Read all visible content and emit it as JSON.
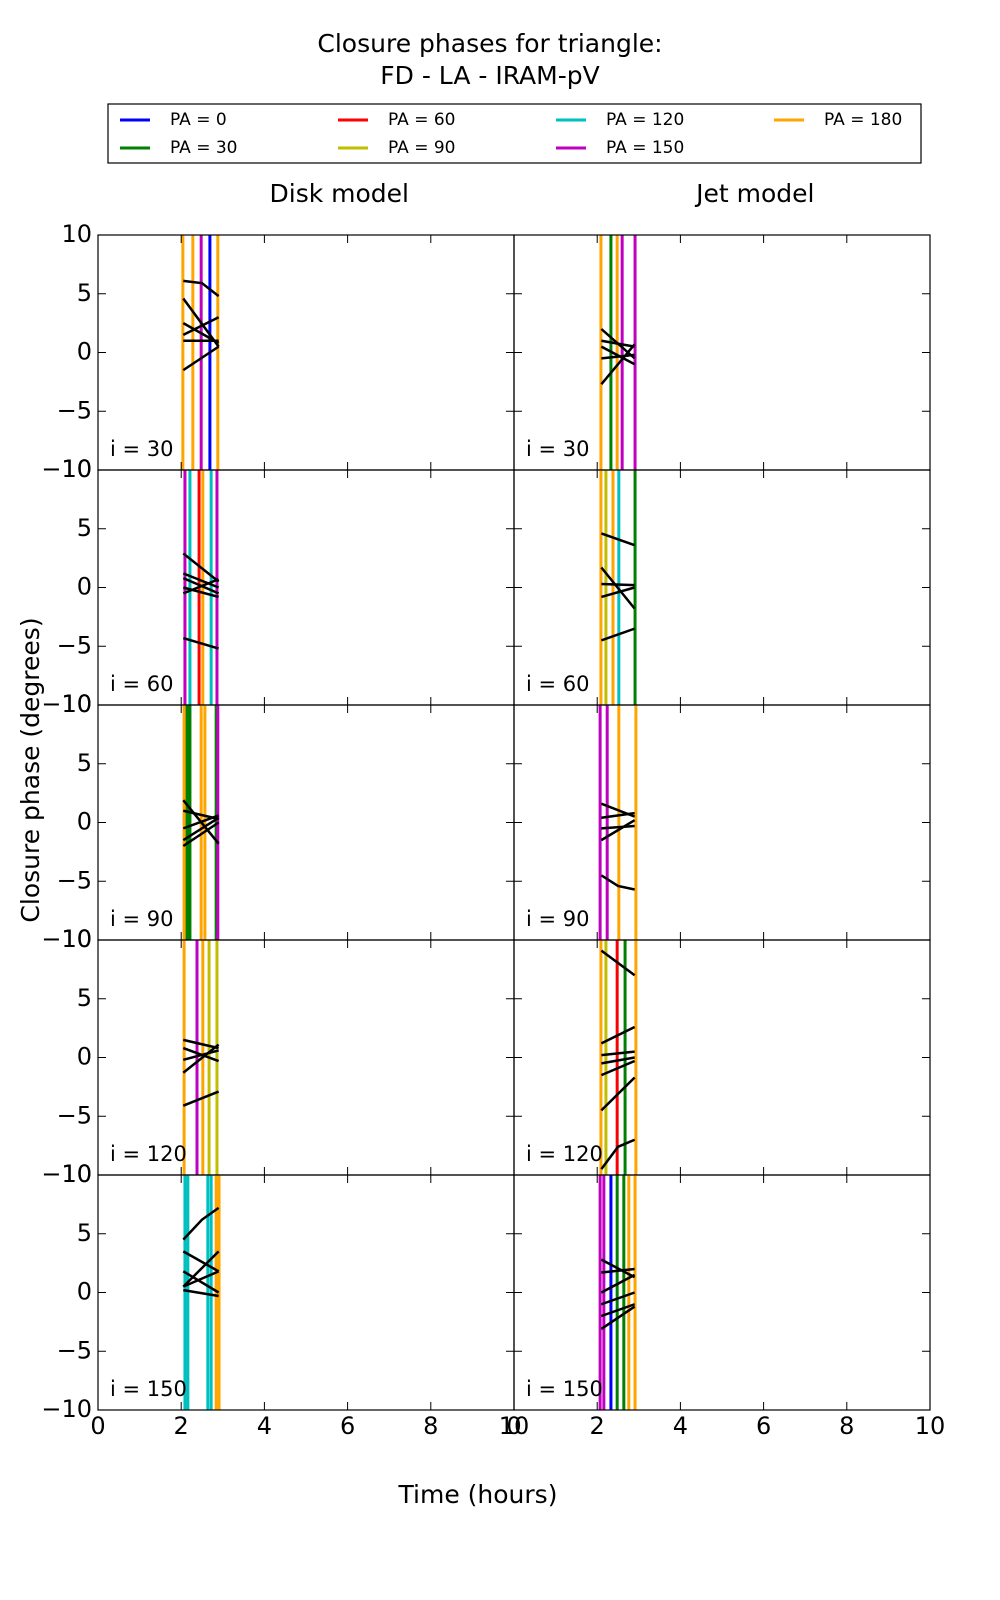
{
  "chart_data": {
    "type": "line",
    "title": [
      "Closure phases for triangle:",
      "FD - LA - IRAM-pV"
    ],
    "xlabel": "Time (hours)",
    "ylabel": "Closure phase (degrees)",
    "xlim": [
      0,
      10
    ],
    "xticks": [
      0,
      2,
      4,
      6,
      8,
      10
    ],
    "ylim": [
      -10,
      10
    ],
    "yticks": [
      {
        "value": -10,
        "label": "−10"
      },
      {
        "value": -5,
        "label": "−5"
      },
      0,
      5,
      10
    ],
    "curve_color": "#000000",
    "series": [
      {
        "name": "PA = 0",
        "color": "#0000ff"
      },
      {
        "name": "PA = 30",
        "color": "#008000"
      },
      {
        "name": "PA = 60",
        "color": "#ff0000"
      },
      {
        "name": "PA = 90",
        "color": "#bfbf00"
      },
      {
        "name": "PA = 120",
        "color": "#00bfbf"
      },
      {
        "name": "PA = 150",
        "color": "#bf00bf"
      },
      {
        "name": "PA = 180",
        "color": "#ffa500"
      }
    ],
    "columns": [
      {
        "title": "Disk model",
        "panels": [
          {
            "label": "i = 30",
            "vlines": [
              [
                2.69
              ],
              [],
              [],
              [],
              [],
              [
                2.48
              ],
              [
                2.04,
                2.28,
                2.88
              ]
            ],
            "curves": [
              {
                "x": [
                  2.05,
                  2.5,
                  2.9
                ],
                "values": [
                  6.1,
                  5.9,
                  4.8
                ]
              },
              {
                "x": [
                  2.05,
                  2.9
                ],
                "values": [
                  4.6,
                  0.5
                ]
              },
              {
                "x": [
                  2.05,
                  2.9
                ],
                "values": [
                  2.5,
                  0.8
                ]
              },
              {
                "x": [
                  2.05,
                  2.9
                ],
                "values": [
                  1.5,
                  3.0
                ]
              },
              {
                "x": [
                  2.05,
                  2.9
                ],
                "values": [
                  1.0,
                  1.0
                ]
              },
              {
                "x": [
                  2.05,
                  2.9
                ],
                "values": [
                  -1.5,
                  0.5
                ]
              }
            ]
          },
          {
            "label": "i = 60",
            "vlines": [
              [],
              [],
              [
                2.43
              ],
              [],
              [
                2.21,
                2.72
              ],
              [
                2.09,
                2.86
              ],
              [
                2.52
              ]
            ],
            "curves": [
              {
                "x": [
                  2.05,
                  2.9
                ],
                "values": [
                  2.9,
                  0.5
                ]
              },
              {
                "x": [
                  2.05,
                  2.9
                ],
                "values": [
                  1.2,
                  0
                ]
              },
              {
                "x": [
                  2.05,
                  2.9
                ],
                "values": [
                  0.8,
                  -0.5
                ]
              },
              {
                "x": [
                  2.05,
                  2.9
                ],
                "values": [
                  -0.5,
                  0.7
                ]
              },
              {
                "x": [
                  2.05,
                  2.9
                ],
                "values": [
                  -4.3,
                  -5.2
                ]
              },
              {
                "x": [
                  2.05,
                  2.9
                ],
                "values": [
                  0,
                  -0.8
                ]
              }
            ]
          },
          {
            "label": "i = 90",
            "vlines": [
              [],
              [
                2.14,
                2.21,
                2.84
              ],
              [],
              [],
              [],
              [
                2.88
              ],
              [
                2.07,
                2.48,
                2.57
              ]
            ],
            "curves": [
              {
                "x": [
                  2.05,
                  2.9
                ],
                "values": [
                  1.9,
                  -1.8
                ]
              },
              {
                "x": [
                  2.05,
                  2.9
                ],
                "values": [
                  1.0,
                  0.3
                ]
              },
              {
                "x": [
                  2.05,
                  2.9
                ],
                "values": [
                  -0.5,
                  0.6
                ]
              },
              {
                "x": [
                  2.05,
                  2.9
                ],
                "values": [
                  -1.5,
                  0.4
                ]
              },
              {
                "x": [
                  2.05,
                  2.9
                ],
                "values": [
                  -2.0,
                  0
                ]
              }
            ]
          },
          {
            "label": "i = 120",
            "vlines": [
              [],
              [],
              [],
              [
                2.67,
                2.86
              ],
              [],
              [
                2.38
              ],
              [
                2.07,
                2.52
              ]
            ],
            "curves": [
              {
                "x": [
                  2.05,
                  2.9
                ],
                "values": [
                  1.5,
                  0.8
                ]
              },
              {
                "x": [
                  2.05,
                  2.9
                ],
                "values": [
                  0.8,
                  -0.3
                ]
              },
              {
                "x": [
                  2.05,
                  2.9
                ],
                "values": [
                  -1.3,
                  1.1
                ]
              },
              {
                "x": [
                  2.05,
                  2.9
                ],
                "values": [
                  -0.2,
                  0.6
                ]
              },
              {
                "x": [
                  2.05,
                  2.9
                ],
                "values": [
                  -4.1,
                  -2.9
                ]
              }
            ]
          },
          {
            "label": "i = 150",
            "vlines": [
              [],
              [],
              [],
              [],
              [
                2.09,
                2.16,
                2.64,
                2.72
              ],
              [],
              [
                2.84,
                2.91
              ]
            ],
            "curves": [
              {
                "x": [
                  2.05,
                  2.5,
                  2.9
                ],
                "values": [
                  4.5,
                  6.2,
                  7.2
                ]
              },
              {
                "x": [
                  2.05,
                  2.9
                ],
                "values": [
                  3.5,
                  1.8
                ]
              },
              {
                "x": [
                  2.05,
                  2.9
                ],
                "values": [
                  1.8,
                  0
                ]
              },
              {
                "x": [
                  2.05,
                  2.9
                ],
                "values": [
                  0.5,
                  3.5
                ]
              },
              {
                "x": [
                  2.05,
                  2.9
                ],
                "values": [
                  0.5,
                  1.8
                ]
              },
              {
                "x": [
                  2.05,
                  2.9
                ],
                "values": [
                  0.2,
                  -0.3
                ]
              }
            ]
          }
        ]
      },
      {
        "title": "Jet model",
        "panels": [
          {
            "label": "i = 30",
            "vlines": [
              [],
              [
                2.33
              ],
              [],
              [],
              [],
              [
                2.6,
                2.91
              ],
              [
                2.09,
                2.48
              ]
            ],
            "curves": [
              {
                "x": [
                  2.1,
                  2.9
                ],
                "values": [
                  2.0,
                  -0.5
                ]
              },
              {
                "x": [
                  2.1,
                  2.9
                ],
                "values": [
                  1.0,
                  0.5
                ]
              },
              {
                "x": [
                  2.1,
                  2.9
                ],
                "values": [
                  0.5,
                  -1.0
                ]
              },
              {
                "x": [
                  2.1,
                  2.9
                ],
                "values": [
                  -2.7,
                  0.7
                ]
              },
              {
                "x": [
                  2.1,
                  2.9
                ],
                "values": [
                  -0.5,
                  -0.2
                ]
              }
            ]
          },
          {
            "label": "i = 60",
            "vlines": [
              [],
              [
                2.91
              ],
              [],
              [
                2.21
              ],
              [
                2.52
              ],
              [],
              [
                2.09,
                2.38
              ]
            ],
            "curves": [
              {
                "x": [
                  2.1,
                  2.9
                ],
                "values": [
                  4.6,
                  3.6
                ]
              },
              {
                "x": [
                  2.1,
                  2.9
                ],
                "values": [
                  1.7,
                  -1.8
                ]
              },
              {
                "x": [
                  2.1,
                  2.9
                ],
                "values": [
                  0.3,
                  0.2
                ]
              },
              {
                "x": [
                  2.1,
                  2.9
                ],
                "values": [
                  -0.8,
                  0
                ]
              },
              {
                "x": [
                  2.1,
                  2.9
                ],
                "values": [
                  -4.5,
                  -3.5
                ]
              }
            ]
          },
          {
            "label": "i = 90",
            "vlines": [
              [],
              [],
              [],
              [],
              [],
              [
                2.07,
                2.24
              ],
              [
                2.52,
                2.93
              ]
            ],
            "curves": [
              {
                "x": [
                  2.1,
                  2.9
                ],
                "values": [
                  1.6,
                  0.5
                ]
              },
              {
                "x": [
                  2.1,
                  2.9
                ],
                "values": [
                  0.4,
                  0.8
                ]
              },
              {
                "x": [
                  2.1,
                  2.9
                ],
                "values": [
                  -0.5,
                  -0.3
                ]
              },
              {
                "x": [
                  2.1,
                  2.9
                ],
                "values": [
                  -1.5,
                  0.2
                ]
              },
              {
                "x": [
                  2.1,
                  2.5,
                  2.9
                ],
                "values": [
                  -4.5,
                  -5.4,
                  -5.7
                ]
              }
            ]
          },
          {
            "label": "i = 120",
            "vlines": [
              [],
              [
                2.67
              ],
              [
                2.48
              ],
              [
                2.21
              ],
              [],
              [],
              [
                2.09,
                2.93
              ]
            ],
            "curves": [
              {
                "x": [
                  2.1,
                  2.9
                ],
                "values": [
                  9.1,
                  7.0
                ]
              },
              {
                "x": [
                  2.1,
                  2.9
                ],
                "values": [
                  1.2,
                  2.6
                ]
              },
              {
                "x": [
                  2.1,
                  2.9
                ],
                "values": [
                  0.2,
                  0.5
                ]
              },
              {
                "x": [
                  2.1,
                  2.9
                ],
                "values": [
                  -0.5,
                  0
                ]
              },
              {
                "x": [
                  2.1,
                  2.9
                ],
                "values": [
                  -1.5,
                  -0.3
                ]
              },
              {
                "x": [
                  2.1,
                  2.9
                ],
                "values": [
                  -4.5,
                  -1.7
                ]
              },
              {
                "x": [
                  2.1,
                  2.5,
                  2.9
                ],
                "values": [
                  -9.5,
                  -7.6,
                  -7.0
                ]
              }
            ]
          },
          {
            "label": "i = 150",
            "vlines": [
              [
                2.33
              ],
              [
                2.48,
                2.64
              ],
              [],
              [],
              [],
              [
                2.07,
                2.16
              ],
              [
                2.76,
                2.91
              ]
            ],
            "curves": [
              {
                "x": [
                  2.1,
                  2.9
                ],
                "values": [
                  2.8,
                  1.3
                ]
              },
              {
                "x": [
                  2.1,
                  2.9
                ],
                "values": [
                  1.7,
                  2.0
                ]
              },
              {
                "x": [
                  2.1,
                  2.9
                ],
                "values": [
                  0,
                  1.5
                ]
              },
              {
                "x": [
                  2.1,
                  2.9
                ],
                "values": [
                  -1.0,
                  0
                ]
              },
              {
                "x": [
                  2.1,
                  2.9
                ],
                "values": [
                  -2.0,
                  -1.0
                ]
              },
              {
                "x": [
                  2.1,
                  2.9
                ],
                "values": [
                  -3.1,
                  -1.2
                ]
              }
            ]
          }
        ]
      }
    ]
  }
}
